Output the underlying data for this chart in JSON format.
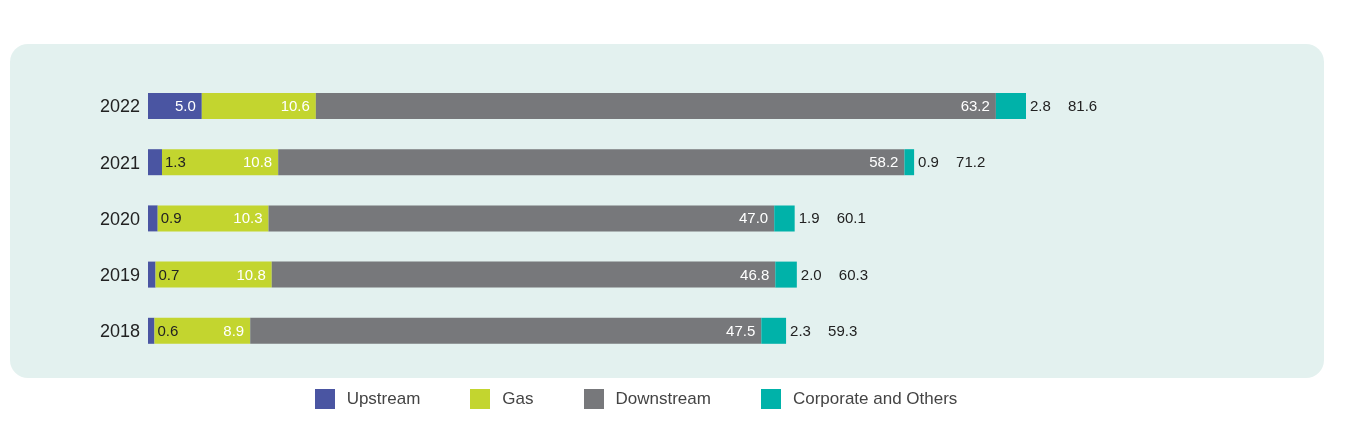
{
  "chart_data": {
    "type": "bar",
    "orientation": "horizontal",
    "stacked": true,
    "categories": [
      "2022",
      "2021",
      "2020",
      "2019",
      "2018"
    ],
    "series": [
      {
        "name": "Upstream",
        "color": "#4a55a2",
        "values": [
          5.0,
          1.3,
          0.9,
          0.7,
          0.6
        ],
        "value_labels": [
          "5.0",
          "1.3",
          "0.9",
          "0.7",
          "0.6"
        ]
      },
      {
        "name": "Gas",
        "color": "#c3d52f",
        "values": [
          10.6,
          10.8,
          10.3,
          10.8,
          8.9
        ],
        "value_labels": [
          "10.6",
          "10.8",
          "10.3",
          "10.8",
          "8.9"
        ]
      },
      {
        "name": "Downstream",
        "color": "#77787b",
        "values": [
          63.2,
          58.2,
          47.0,
          46.8,
          47.5
        ],
        "value_labels": [
          "63.2",
          "58.2",
          "47.0",
          "46.8",
          "47.5"
        ]
      },
      {
        "name": "Corporate and Others",
        "color": "#00b2a9",
        "values": [
          2.8,
          0.9,
          1.9,
          2.0,
          2.3
        ],
        "value_labels": [
          "2.8",
          "0.9",
          "1.9",
          "2.0",
          "2.3"
        ]
      }
    ],
    "totals": [
      "81.6",
      "71.2",
      "60.1",
      "60.3",
      "59.3"
    ],
    "legend": "bottom"
  }
}
